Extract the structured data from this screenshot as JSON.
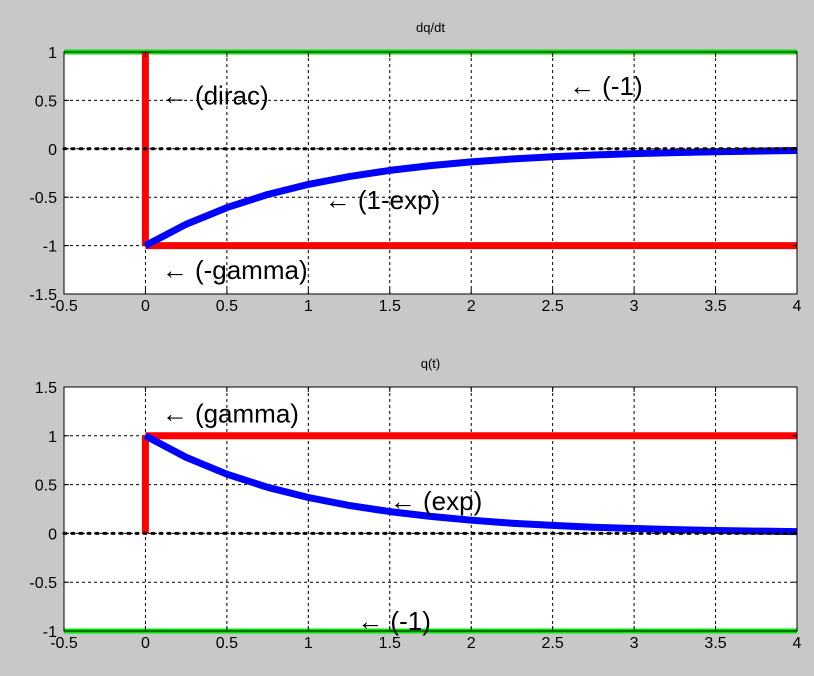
{
  "chart_data": [
    {
      "type": "line",
      "title": "dq/dt",
      "xlabel": "",
      "ylabel": "",
      "xlim": [
        -0.5,
        4
      ],
      "ylim": [
        -1.5,
        1
      ],
      "xticks": [
        -0.5,
        0,
        0.5,
        1,
        1.5,
        2,
        2.5,
        3,
        3.5,
        4
      ],
      "xtick_labels": [
        "-0.5",
        "0",
        "0.5",
        "1",
        "1.5",
        "2",
        "2.5",
        "3",
        "3.5",
        "4"
      ],
      "yticks": [
        -1.5,
        -1,
        -0.5,
        0,
        0.5,
        1
      ],
      "ytick_labels": [
        "-1.5",
        "-1",
        "-0.5",
        "0",
        "0.5",
        "1"
      ],
      "grid": true,
      "colors": {
        "green": "#00e600",
        "red": "#ff0000",
        "blue": "#0000ff",
        "zero": "#000000"
      },
      "series": [
        {
          "key": "minus_one",
          "color": "#00e600",
          "style": "solid",
          "width": 5,
          "x": [
            -0.5,
            4
          ],
          "y": [
            1,
            1
          ]
        },
        {
          "key": "dirac",
          "color": "#ff0000",
          "style": "solid",
          "width": 7,
          "x": [
            0,
            0
          ],
          "y": [
            -1,
            1
          ]
        },
        {
          "key": "minus_gamma",
          "color": "#ff0000",
          "style": "solid",
          "width": 7,
          "x": [
            0,
            4
          ],
          "y": [
            -1,
            -1
          ]
        },
        {
          "key": "one_minus_exp",
          "color": "#0000ff",
          "style": "solid",
          "width": 7,
          "x": [
            0,
            0.25,
            0.5,
            0.75,
            1,
            1.25,
            1.5,
            1.75,
            2,
            2.25,
            2.5,
            2.75,
            3,
            3.25,
            3.5,
            3.75,
            4
          ],
          "y": [
            -1,
            -0.779,
            -0.607,
            -0.472,
            -0.368,
            -0.287,
            -0.223,
            -0.174,
            -0.135,
            -0.105,
            -0.082,
            -0.064,
            -0.05,
            -0.039,
            -0.03,
            -0.024,
            -0.018
          ]
        },
        {
          "key": "zero_line",
          "color": "#000000",
          "style": "dotted",
          "width": 3,
          "x": [
            -0.5,
            4
          ],
          "y": [
            0,
            0
          ]
        }
      ],
      "annotations": [
        {
          "text": "← (dirac)",
          "x": 0.1,
          "y": 0.55
        },
        {
          "text": "← (-1)",
          "x": 2.6,
          "y": 0.65
        },
        {
          "text": "← (1-exp)",
          "x": 1.1,
          "y": -0.53
        },
        {
          "text": "← (-gamma)",
          "x": 0.1,
          "y": -1.25
        }
      ]
    },
    {
      "type": "line",
      "title": "q(t)",
      "xlabel": "",
      "ylabel": "",
      "xlim": [
        -0.5,
        4
      ],
      "ylim": [
        -1,
        1.5
      ],
      "xticks": [
        -0.5,
        0,
        0.5,
        1,
        1.5,
        2,
        2.5,
        3,
        3.5,
        4
      ],
      "xtick_labels": [
        "-0.5",
        "0",
        "0.5",
        "1",
        "1.5",
        "2",
        "2.5",
        "3",
        "3.5",
        "4"
      ],
      "yticks": [
        -1,
        -0.5,
        0,
        0.5,
        1,
        1.5
      ],
      "ytick_labels": [
        "-1",
        "-0.5",
        "0",
        "0.5",
        "1",
        "1.5"
      ],
      "grid": true,
      "colors": {
        "green": "#00e600",
        "red": "#ff0000",
        "blue": "#0000ff",
        "zero": "#000000"
      },
      "series": [
        {
          "key": "minus_one",
          "color": "#00e600",
          "style": "solid",
          "width": 5,
          "x": [
            -0.5,
            4
          ],
          "y": [
            -1,
            -1
          ]
        },
        {
          "key": "gamma_step",
          "color": "#ff0000",
          "style": "solid",
          "width": 7,
          "x": [
            0,
            0
          ],
          "y": [
            0,
            1
          ]
        },
        {
          "key": "gamma",
          "color": "#ff0000",
          "style": "solid",
          "width": 7,
          "x": [
            0,
            4
          ],
          "y": [
            1,
            1
          ]
        },
        {
          "key": "exp",
          "color": "#0000ff",
          "style": "solid",
          "width": 7,
          "x": [
            0,
            0.25,
            0.5,
            0.75,
            1,
            1.25,
            1.5,
            1.75,
            2,
            2.25,
            2.5,
            2.75,
            3,
            3.25,
            3.5,
            3.75,
            4
          ],
          "y": [
            1,
            0.779,
            0.607,
            0.472,
            0.368,
            0.287,
            0.223,
            0.174,
            0.135,
            0.105,
            0.082,
            0.064,
            0.05,
            0.039,
            0.03,
            0.024,
            0.018
          ]
        },
        {
          "key": "zero_line",
          "color": "#000000",
          "style": "dotted",
          "width": 3,
          "x": [
            -0.5,
            4
          ],
          "y": [
            0,
            0
          ]
        }
      ],
      "annotations": [
        {
          "text": "← (gamma)",
          "x": 0.1,
          "y": 1.23
        },
        {
          "text": "← (exp)",
          "x": 1.5,
          "y": 0.33
        },
        {
          "text": "← (-1)",
          "x": 1.3,
          "y": -0.9
        }
      ]
    }
  ]
}
